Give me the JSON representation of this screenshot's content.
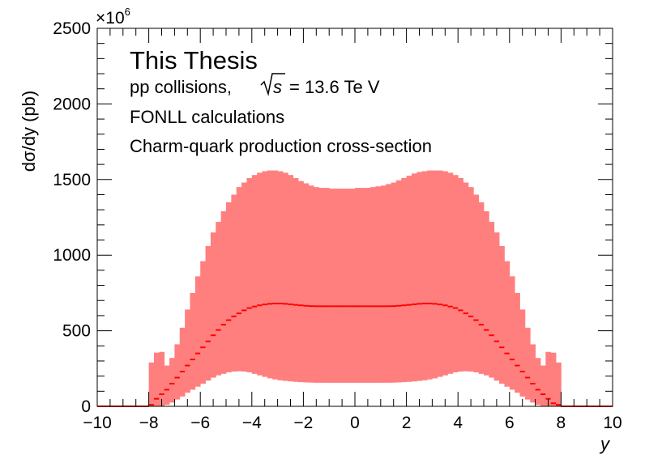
{
  "chart_data": {
    "type": "area",
    "xlabel": "y",
    "ylabel": "dσ/dy (pb)",
    "y_multiplier": "×10",
    "y_multiplier_exp": "6",
    "xlim": [
      -10,
      10
    ],
    "ylim": [
      0,
      2500
    ],
    "x_ticks": [
      "−10",
      "−8",
      "−6",
      "−4",
      "−2",
      "0",
      "2",
      "4",
      "6",
      "8",
      "10"
    ],
    "y_ticks": [
      "0",
      "500",
      "1000",
      "1500",
      "2000",
      "2500"
    ],
    "grid": false,
    "annotations": {
      "title": "This Thesis",
      "line1_prefix": "pp collisions,",
      "line1_sqrt": "s",
      "line1_suffix": "= 13.6 Te V",
      "line2": "FONLL calculations",
      "line3": "Charm-quark production cross-section"
    },
    "band_color": "#ff7f7f",
    "central_color": "#ff0000",
    "band_outside_range": 0,
    "band_x": [
      -8.0,
      -7.8,
      -7.6,
      -7.4,
      -7.2,
      -7.0,
      -6.8,
      -6.6,
      -6.4,
      -6.2,
      -6.0,
      -5.8,
      -5.6,
      -5.4,
      -5.2,
      -5.0,
      -4.8,
      -4.6,
      -4.4,
      -4.2,
      -4.0,
      -3.8,
      -3.6,
      -3.4,
      -3.2,
      -3.0,
      -2.8,
      -2.6,
      -2.4,
      -2.2,
      -2.0,
      -1.8,
      -1.6,
      -1.4,
      -1.2,
      -1.0,
      -0.8,
      -0.6,
      -0.4,
      -0.2,
      0.0,
      0.2,
      0.4,
      0.6,
      0.8,
      1.0,
      1.2,
      1.4,
      1.6,
      1.8,
      2.0,
      2.2,
      2.4,
      2.6,
      2.8,
      3.0,
      3.2,
      3.4,
      3.6,
      3.8,
      4.0,
      4.2,
      4.4,
      4.6,
      4.8,
      5.0,
      5.2,
      5.4,
      5.6,
      5.8,
      6.0,
      6.2,
      6.4,
      6.6,
      6.8,
      7.0,
      7.2,
      7.4,
      7.6,
      7.8
    ],
    "band_upper": [
      290,
      355,
      360,
      270,
      320,
      410,
      520,
      640,
      750,
      860,
      960,
      1060,
      1150,
      1220,
      1290,
      1350,
      1400,
      1450,
      1480,
      1510,
      1530,
      1545,
      1555,
      1560,
      1560,
      1555,
      1545,
      1530,
      1510,
      1490,
      1475,
      1460,
      1450,
      1445,
      1445,
      1440,
      1440,
      1440,
      1440,
      1440,
      1445,
      1445,
      1445,
      1450,
      1455,
      1460,
      1470,
      1480,
      1495,
      1510,
      1525,
      1540,
      1550,
      1555,
      1560,
      1560,
      1560,
      1555,
      1545,
      1530,
      1510,
      1480,
      1450,
      1400,
      1350,
      1290,
      1220,
      1150,
      1060,
      960,
      860,
      750,
      640,
      520,
      410,
      320,
      270,
      360,
      355,
      290
    ],
    "band_lower": [
      0,
      0,
      0,
      10,
      25,
      45,
      65,
      90,
      110,
      130,
      150,
      170,
      190,
      205,
      215,
      225,
      230,
      232,
      230,
      225,
      215,
      205,
      195,
      185,
      178,
      172,
      168,
      165,
      162,
      160,
      158,
      157,
      156,
      156,
      156,
      156,
      156,
      156,
      156,
      156,
      156,
      156,
      156,
      156,
      156,
      156,
      156,
      157,
      158,
      160,
      162,
      165,
      168,
      172,
      178,
      185,
      195,
      205,
      215,
      225,
      230,
      232,
      230,
      225,
      215,
      205,
      190,
      170,
      150,
      130,
      110,
      90,
      65,
      45,
      25,
      10,
      0,
      0,
      0,
      0
    ],
    "central": [
      10,
      50,
      80,
      110,
      150,
      190,
      230,
      270,
      310,
      350,
      390,
      430,
      470,
      505,
      540,
      570,
      595,
      615,
      635,
      650,
      660,
      668,
      674,
      678,
      680,
      680,
      678,
      675,
      671,
      668,
      665,
      663,
      662,
      662,
      662,
      662,
      662,
      662,
      662,
      662,
      662,
      662,
      662,
      662,
      662,
      662,
      662,
      663,
      665,
      668,
      671,
      675,
      678,
      680,
      680,
      678,
      674,
      668,
      660,
      650,
      635,
      615,
      595,
      570,
      540,
      505,
      470,
      430,
      390,
      350,
      310,
      270,
      230,
      190,
      150,
      110,
      80,
      50,
      20,
      10
    ]
  }
}
